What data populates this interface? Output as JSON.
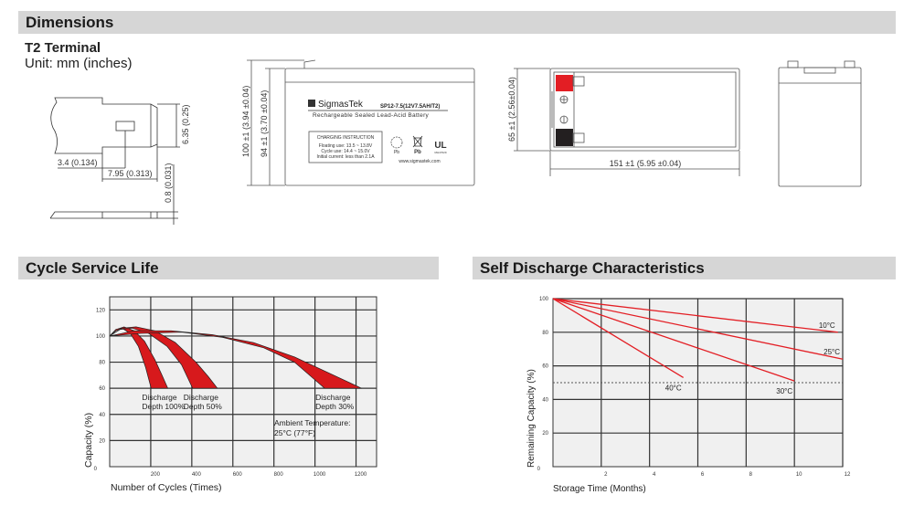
{
  "sections": {
    "dimensions": "Dimensions",
    "cycle_life": "Cycle Service Life",
    "self_discharge": "Self Discharge Characteristics"
  },
  "terminal": {
    "title": "T2 Terminal",
    "unit": "Unit: mm (inches)",
    "dim_height": "6.35 (0.25)",
    "dim_hole": "3.4 (0.134)",
    "dim_length": "7.95 (0.313)",
    "dim_thickness": "0.8 (0.031)"
  },
  "front_view": {
    "dim_total_height": "100 ±1 (3.94 ±0.04)",
    "dim_body_height": "94 ±1 (3.70 ±0.04)",
    "brand": "SigmasTek",
    "model": "SP12-7.5(12V7.5AH/T2)",
    "description": "Rechargeable Sealed Lead-Acid Battery",
    "charging_title": "CHARGING INSTRUCTION",
    "charging_lines": [
      "Floating use: 13.5 ~ 13.8V",
      "Cycle use: 14.4 ~ 15.0V",
      "Initial current: less than 2.1A"
    ],
    "pb1": "Pb",
    "pb2": "Pb",
    "ul_number": "MH47029",
    "website": "www.sigmastek.com"
  },
  "top_view": {
    "dim_width": "65 ±1 (2.56±0.04)",
    "dim_length": "151 ±1 (5.95 ±0.04)",
    "positive_color": "#e31e24",
    "negative_color": "#231f20"
  },
  "chart_data": [
    {
      "type": "area",
      "xlabel": "Number of Cycles (Times)",
      "ylabel": "Capacity (%)",
      "xlim": [
        0,
        1300
      ],
      "ylim": [
        0,
        130
      ],
      "xticks": [
        0,
        200,
        400,
        600,
        800,
        1000,
        1200
      ],
      "yticks": [
        20,
        40,
        60,
        80,
        100,
        120
      ],
      "grid": true,
      "fill_color": "#d7191c",
      "annotation": [
        "Ambient Temperature:",
        "25°C (77°F)"
      ],
      "series": [
        {
          "name": "Discharge Depth 100%",
          "label": [
            "Discharge",
            "Depth 100%"
          ],
          "upper": [
            [
              0,
              100
            ],
            [
              30,
              105
            ],
            [
              70,
              107
            ],
            [
              120,
              104
            ],
            [
              170,
              96
            ],
            [
              220,
              82
            ],
            [
              255,
              70
            ],
            [
              283,
              60
            ]
          ],
          "lower": [
            [
              0,
              100
            ],
            [
              30,
              104
            ],
            [
              60,
              106
            ],
            [
              100,
              102
            ],
            [
              140,
              92
            ],
            [
              175,
              76
            ],
            [
              202,
              60
            ]
          ]
        },
        {
          "name": "Discharge Depth 50%",
          "label": [
            "Discharge",
            "Depth 50%"
          ],
          "upper": [
            [
              0,
              100
            ],
            [
              60,
              106
            ],
            [
              130,
              107
            ],
            [
              220,
              104
            ],
            [
              320,
              95
            ],
            [
              420,
              80
            ],
            [
              480,
              69
            ],
            [
              525,
              60
            ]
          ],
          "lower": [
            [
              0,
              100
            ],
            [
              50,
              105
            ],
            [
              110,
              106
            ],
            [
              190,
              102
            ],
            [
              280,
              92
            ],
            [
              350,
              78
            ],
            [
              404,
              60
            ]
          ]
        },
        {
          "name": "Discharge Depth 30%",
          "label": [
            "Discharge",
            "Depth 30%"
          ],
          "upper": [
            [
              0,
              100
            ],
            [
              120,
              104
            ],
            [
              300,
              104
            ],
            [
              500,
              101
            ],
            [
              700,
              95
            ],
            [
              900,
              84
            ],
            [
              1050,
              73
            ],
            [
              1227,
              60
            ]
          ],
          "lower": [
            [
              0,
              100
            ],
            [
              150,
              102
            ],
            [
              350,
              103
            ],
            [
              550,
              99
            ],
            [
              750,
              91
            ],
            [
              900,
              80
            ],
            [
              1047,
              60
            ]
          ]
        }
      ]
    },
    {
      "type": "line",
      "xlabel": "Storage Time (Months)",
      "ylabel": "Remaining Capacity (%)",
      "xlim": [
        0,
        12
      ],
      "ylim": [
        0,
        100
      ],
      "xticks": [
        0,
        2,
        4,
        6,
        8,
        10,
        12
      ],
      "yticks": [
        20,
        40,
        60,
        80,
        100
      ],
      "grid": true,
      "reference_line": 50,
      "line_color": "#e31e24",
      "series": [
        {
          "name": "10°C",
          "x": [
            0,
            11.8
          ],
          "y": [
            100,
            80
          ]
        },
        {
          "name": "25°C",
          "x": [
            0,
            12
          ],
          "y": [
            100,
            64
          ]
        },
        {
          "name": "30°C",
          "x": [
            0,
            10
          ],
          "y": [
            100,
            51
          ]
        },
        {
          "name": "40°C",
          "x": [
            0,
            5.4
          ],
          "y": [
            100,
            53
          ]
        }
      ]
    }
  ]
}
